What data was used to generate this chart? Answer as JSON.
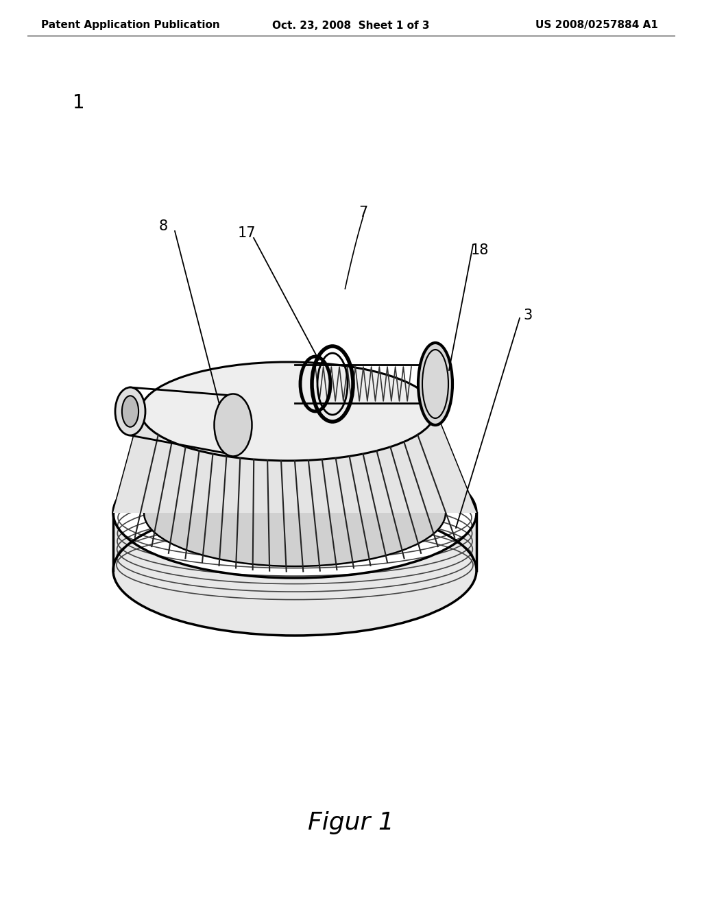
{
  "background_color": "#ffffff",
  "header_left": "Patent Application Publication",
  "header_center": "Oct. 23, 2008  Sheet 1 of 3",
  "header_right": "US 2008/0257884 A1",
  "figure_label": "Figur 1",
  "part_number_1": "1",
  "part_number_3": "3",
  "part_number_7": "7",
  "part_number_8": "8",
  "part_number_17": "17",
  "part_number_18": "18",
  "line_color": "#000000",
  "header_fontsize": 11,
  "label_fontsize": 15,
  "figure_label_fontsize": 26
}
